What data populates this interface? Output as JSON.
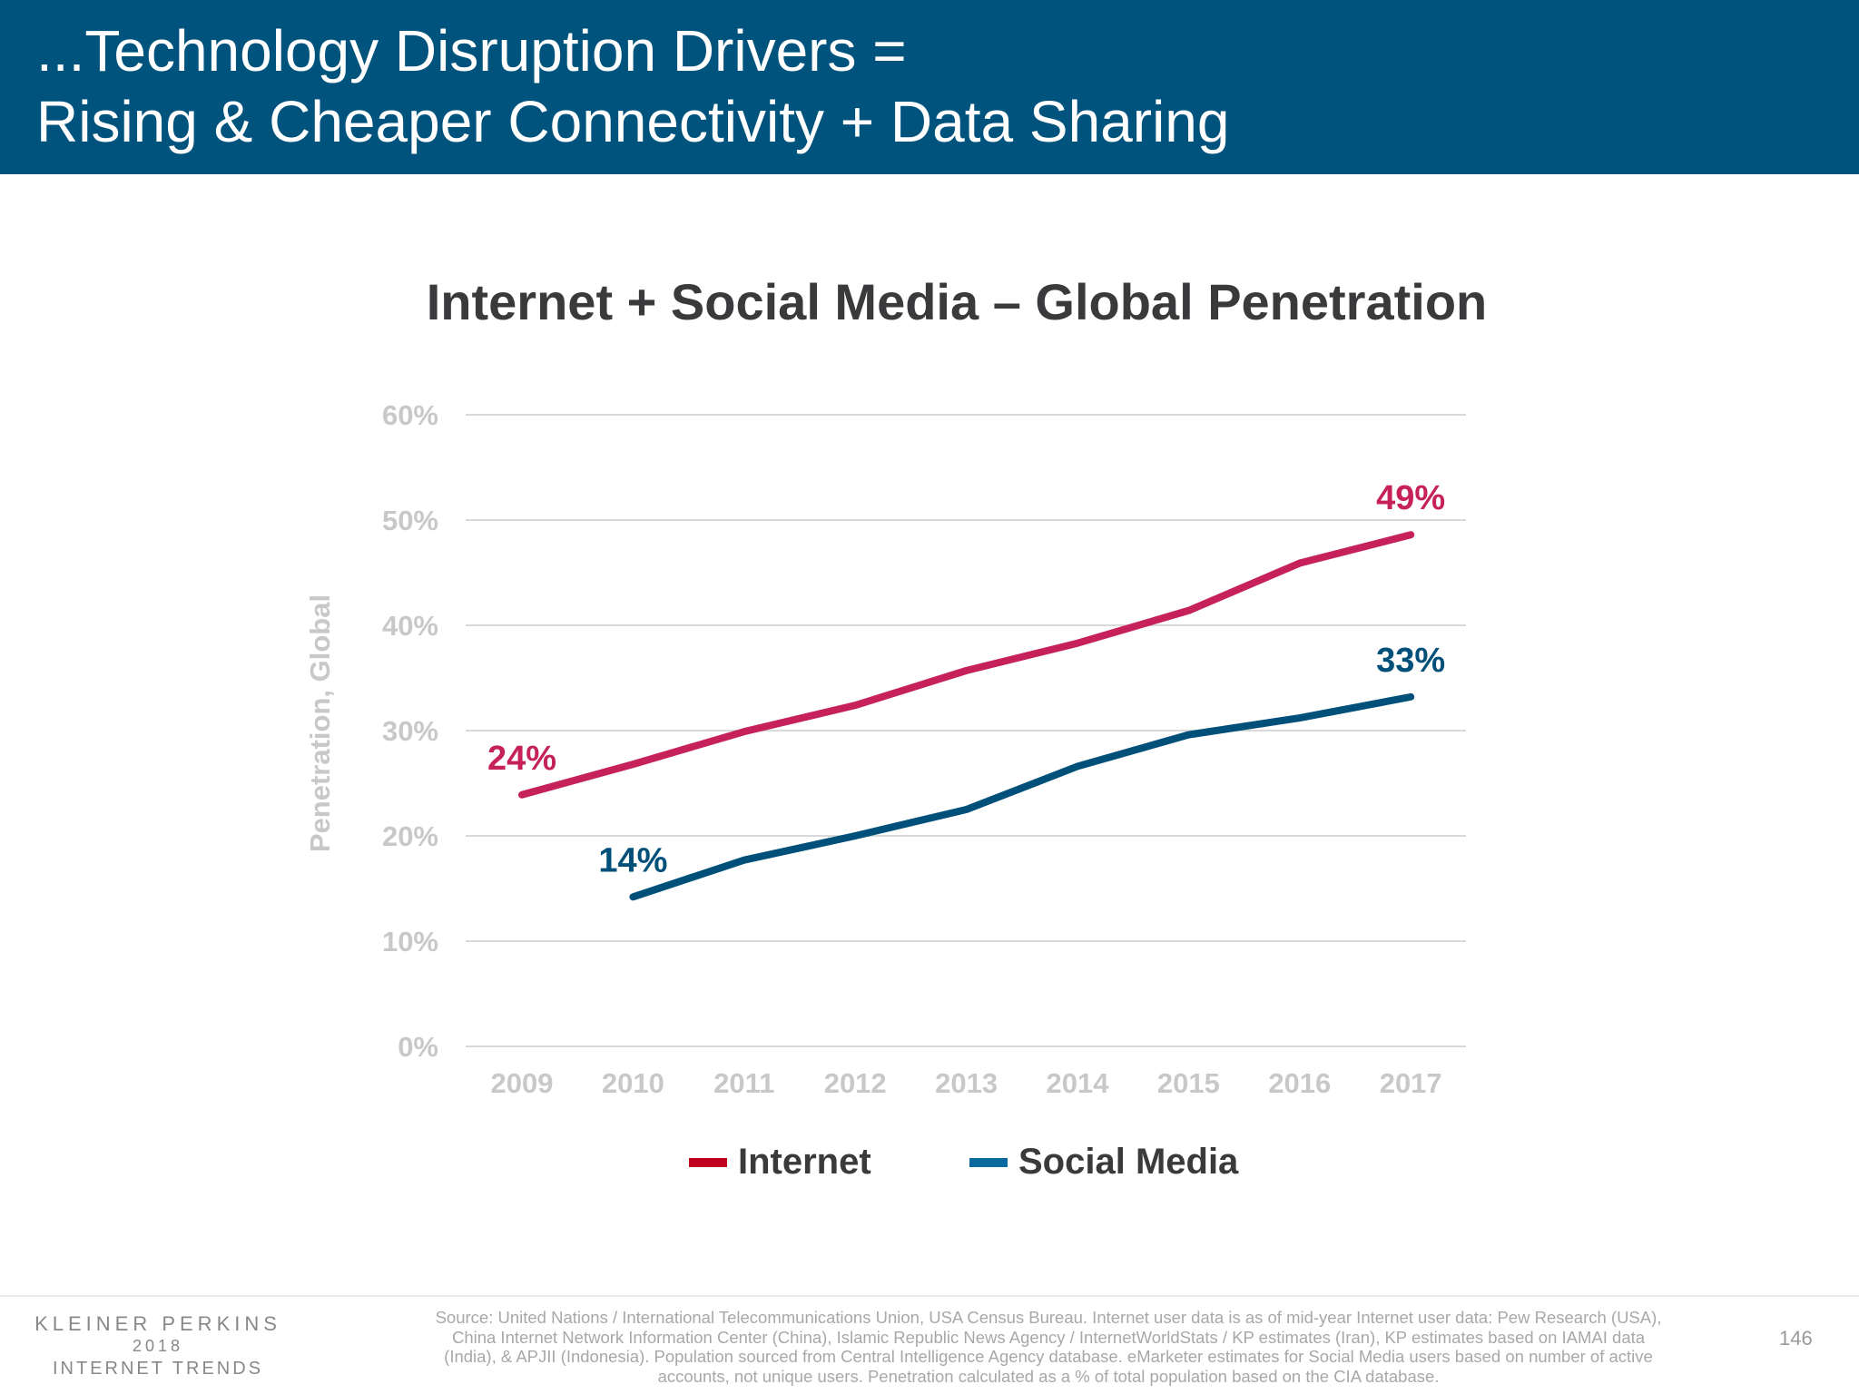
{
  "header": {
    "title_line1": "...Technology Disruption Drivers =",
    "title_line2": "Rising & Cheaper Connectivity + Data Sharing"
  },
  "chart_data": {
    "type": "line",
    "title": "Internet + Social Media – Global Penetration",
    "xlabel": "",
    "ylabel": "Penetration, Global",
    "categories": [
      "2009",
      "2010",
      "2011",
      "2012",
      "2013",
      "2014",
      "2015",
      "2016",
      "2017"
    ],
    "ylim": [
      0,
      60
    ],
    "yticks": [
      "0%",
      "10%",
      "20%",
      "30%",
      "40%",
      "50%",
      "60%"
    ],
    "ytick_values": [
      0,
      10,
      20,
      30,
      40,
      50,
      60
    ],
    "grid": true,
    "legend_position": "bottom",
    "series": [
      {
        "name": "Internet",
        "color": "#c6215b",
        "legend_color": "#c0001f",
        "values": [
          23.9,
          26.8,
          29.9,
          32.4,
          35.7,
          38.3,
          41.4,
          45.9,
          48.6
        ],
        "labels": [
          {
            "index": 0,
            "text": "24%"
          },
          {
            "index": 8,
            "text": "49%"
          }
        ]
      },
      {
        "name": "Social Media",
        "color": "#00507a",
        "legend_color": "#0a6aa0",
        "values": [
          null,
          14.2,
          17.7,
          20.0,
          22.5,
          26.6,
          29.6,
          31.2,
          33.2
        ],
        "labels": [
          {
            "index": 1,
            "text": "14%"
          },
          {
            "index": 8,
            "text": "33%"
          }
        ]
      }
    ]
  },
  "footer": {
    "logo_line1": "KLEINER PERKINS",
    "logo_line2": "2018",
    "logo_line3": "INTERNET TRENDS",
    "source": "Source: United Nations / International Telecommunications Union, USA Census Bureau. Internet user data is as of mid-year Internet user data: Pew Research (USA), China Internet Network Information Center (China), Islamic Republic News Agency / InternetWorldStats / KP estimates (Iran), KP estimates based on IAMAI data (India), & APJII (Indonesia). Population sourced from Central Intelligence Agency database. eMarketer estimates for Social Media users based on number of active accounts, not unique users. Penetration calculated as a % of total population based on the CIA database.",
    "page_number": "146"
  }
}
